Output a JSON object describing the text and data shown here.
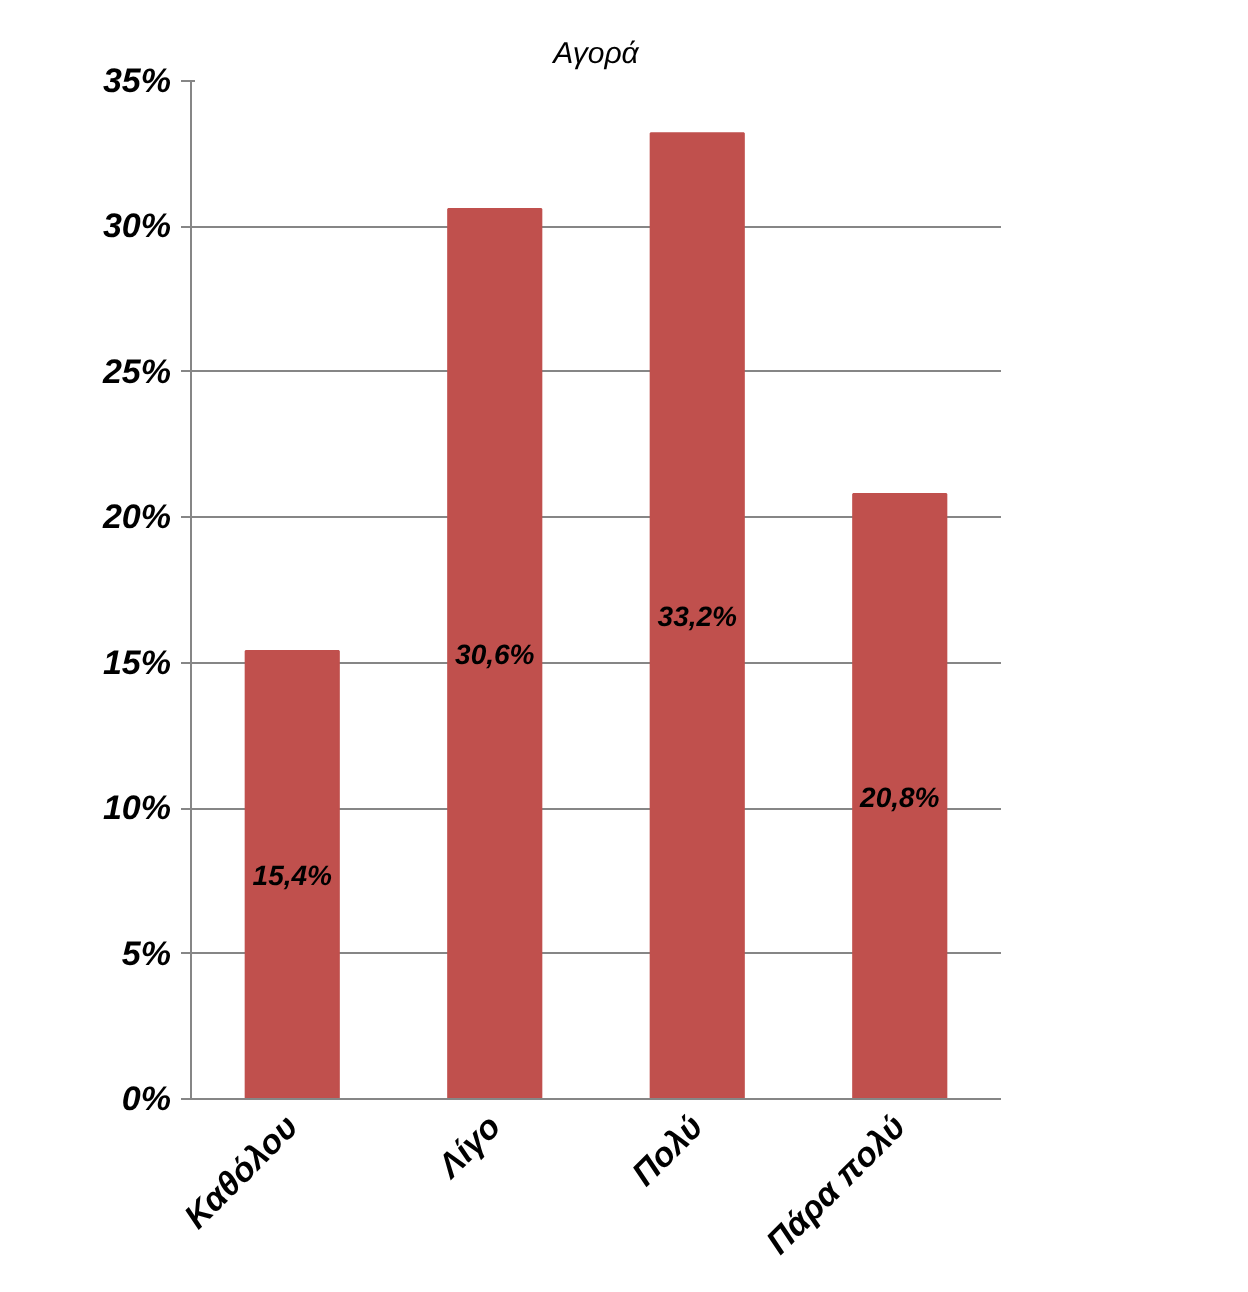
{
  "chart_data": {
    "type": "bar",
    "title": "Αγορά",
    "categories": [
      "Καθόλου",
      "Λίγο",
      "Πολύ",
      "Πάρα πολύ"
    ],
    "values": [
      15.4,
      30.6,
      33.2,
      20.8
    ],
    "value_labels": [
      "15,4%",
      "30,6%",
      "33,2%",
      "20,8%"
    ],
    "color": "#c0504d",
    "ylim": [
      0,
      35
    ],
    "yticks": [
      {
        "value": 0,
        "label": "0%"
      },
      {
        "value": 5,
        "label": "5%"
      },
      {
        "value": 10,
        "label": "10%"
      },
      {
        "value": 15,
        "label": "15%"
      },
      {
        "value": 20,
        "label": "20%"
      },
      {
        "value": 25,
        "label": "25%"
      },
      {
        "value": 30,
        "label": "30%"
      },
      {
        "value": 35,
        "label": "35%"
      }
    ],
    "grid": "y"
  }
}
